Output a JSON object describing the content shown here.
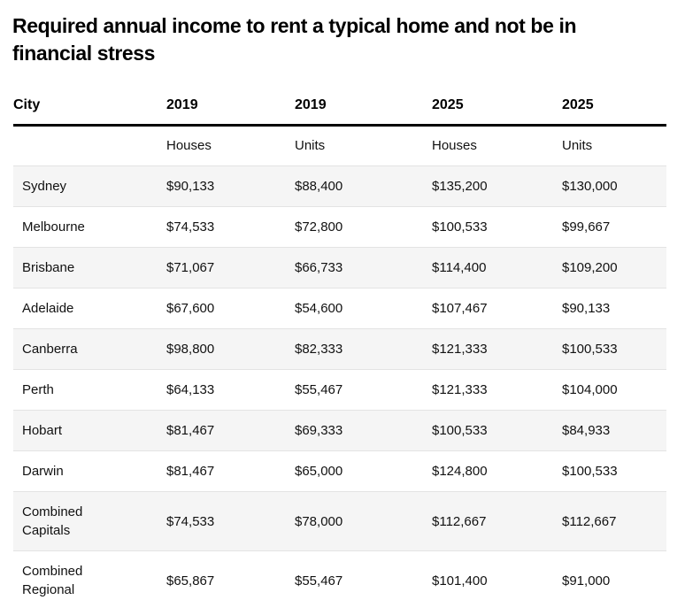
{
  "title": "Required annual income to rent a typical home and not be in\nfinancial stress",
  "table": {
    "header_row1": [
      "City",
      "2019",
      "2019",
      "2025",
      "2025"
    ],
    "header_row2": [
      "",
      "Houses",
      "Units",
      "Houses",
      "Units"
    ],
    "rows": [
      {
        "city": "Sydney",
        "values": [
          "$90,133",
          "$88,400",
          "$135,200",
          "$130,000"
        ]
      },
      {
        "city": "Melbourne",
        "values": [
          "$74,533",
          "$72,800",
          "$100,533",
          "$99,667"
        ]
      },
      {
        "city": "Brisbane",
        "values": [
          "$71,067",
          "$66,733",
          "$114,400",
          "$109,200"
        ]
      },
      {
        "city": "Adelaide",
        "values": [
          "$67,600",
          "$54,600",
          "$107,467",
          "$90,133"
        ]
      },
      {
        "city": "Canberra",
        "values": [
          "$98,800",
          "$82,333",
          "$121,333",
          "$100,533"
        ]
      },
      {
        "city": "Perth",
        "values": [
          "$64,133",
          "$55,467",
          "$121,333",
          "$104,000"
        ]
      },
      {
        "city": "Hobart",
        "values": [
          "$81,467",
          "$69,333",
          "$100,533",
          "$84,933"
        ]
      },
      {
        "city": "Darwin",
        "values": [
          "$81,467",
          "$65,000",
          "$124,800",
          "$100,533"
        ]
      },
      {
        "city": "Combined\nCapitals",
        "values": [
          "$74,533",
          "$78,000",
          "$112,667",
          "$112,667"
        ]
      },
      {
        "city": "Combined\nRegional",
        "values": [
          "$65,867",
          "$55,467",
          "$101,400",
          "$91,000"
        ]
      }
    ]
  },
  "colors": {
    "background": "#ffffff",
    "row_alt_bg": "#f5f5f5",
    "row_divider": "#e3e3e3",
    "header_rule": "#000000",
    "text": "#111111"
  },
  "chart_data": {
    "type": "table",
    "title": "Required annual income to rent a typical home and not be in financial stress",
    "columns": [
      "City",
      "2019 Houses",
      "2019 Units",
      "2025 Houses",
      "2025 Units"
    ],
    "rows": [
      [
        "Sydney",
        90133,
        88400,
        135200,
        130000
      ],
      [
        "Melbourne",
        74533,
        72800,
        100533,
        99667
      ],
      [
        "Brisbane",
        71067,
        66733,
        114400,
        109200
      ],
      [
        "Adelaide",
        67600,
        54600,
        107467,
        90133
      ],
      [
        "Canberra",
        98800,
        82333,
        121333,
        100533
      ],
      [
        "Perth",
        64133,
        55467,
        121333,
        104000
      ],
      [
        "Hobart",
        81467,
        69333,
        100533,
        84933
      ],
      [
        "Darwin",
        81467,
        65000,
        124800,
        100533
      ],
      [
        "Combined Capitals",
        74533,
        78000,
        112667,
        112667
      ],
      [
        "Combined Regional",
        65867,
        55467,
        101400,
        91000
      ]
    ],
    "layout": {
      "grid": "horizontal-row-dividers",
      "alternating_row_shading": true,
      "values_format": "$#,###"
    }
  }
}
